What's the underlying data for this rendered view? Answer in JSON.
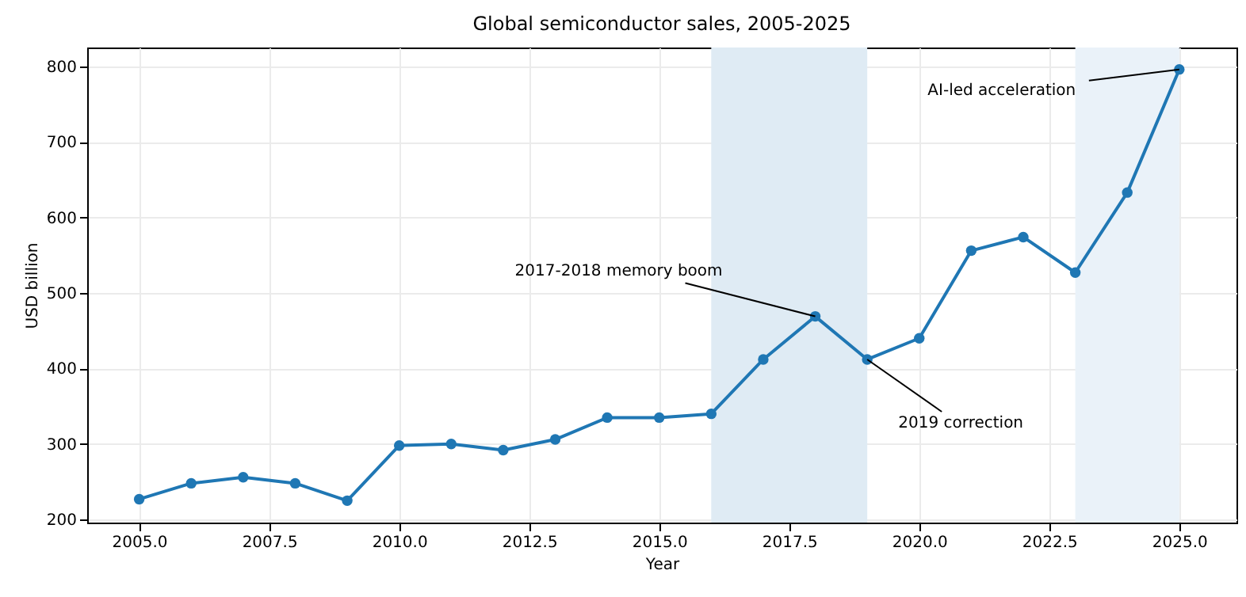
{
  "chart_data": {
    "type": "line",
    "title": "Global semiconductor sales, 2005-2025",
    "xlabel": "Year",
    "ylabel": "USD billion",
    "x": [
      2005,
      2006,
      2007,
      2008,
      2009,
      2010,
      2011,
      2012,
      2013,
      2014,
      2015,
      2016,
      2017,
      2018,
      2019,
      2020,
      2021,
      2022,
      2023,
      2024,
      2025
    ],
    "series": [
      {
        "color": "#1f77b4",
        "values": [
          227,
          248,
          256,
          248,
          225,
          298,
          300,
          292,
          306,
          335,
          335,
          340,
          412,
          469,
          412,
          440,
          556,
          574,
          527,
          633,
          796
        ]
      }
    ],
    "xlim": [
      2004,
      2026.1
    ],
    "ylim": [
      196,
      825
    ],
    "xticks": [
      {
        "value": 2005,
        "label": "2005.0"
      },
      {
        "value": 2007.5,
        "label": "2007.5"
      },
      {
        "value": 2010,
        "label": "2010.0"
      },
      {
        "value": 2012.5,
        "label": "2012.5"
      },
      {
        "value": 2015,
        "label": "2015.0"
      },
      {
        "value": 2017.5,
        "label": "2017.5"
      },
      {
        "value": 2020,
        "label": "2020.0"
      },
      {
        "value": 2022.5,
        "label": "2022.5"
      },
      {
        "value": 2025,
        "label": "2025.0"
      }
    ],
    "yticks": [
      200,
      300,
      400,
      500,
      600,
      700,
      800
    ],
    "bands": [
      {
        "axis": "x",
        "from": 2016,
        "to": 2019,
        "color": "#dfebf4"
      },
      {
        "axis": "x",
        "from": 2023,
        "to": 2025,
        "color": "#eaf2f9"
      }
    ],
    "annotations": [
      {
        "text": "2017-2018 memory boom",
        "x": 2018,
        "y": 469
      },
      {
        "text": "2019 correction",
        "x": 2019,
        "y": 412
      },
      {
        "text": "AI-led acceleration",
        "x": 2025,
        "y": 796
      }
    ],
    "grid": true,
    "marker": "circle",
    "line_style": "solid"
  }
}
